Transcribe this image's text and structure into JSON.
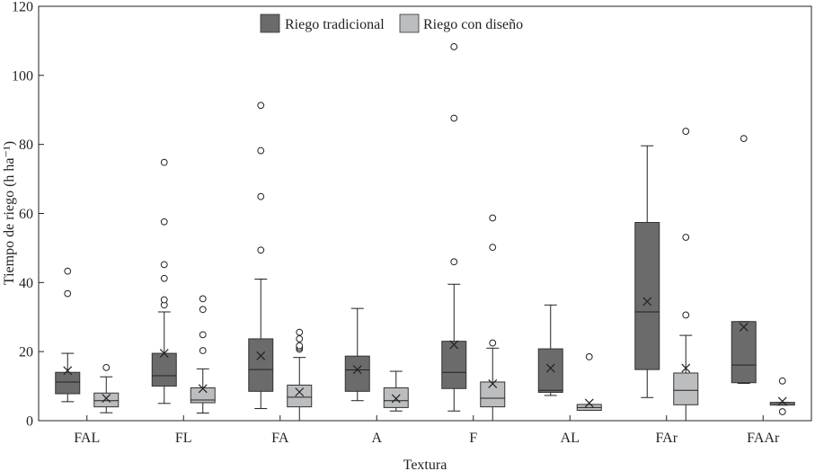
{
  "chart_data": {
    "type": "boxplot",
    "title": "",
    "xlabel": "Textura",
    "ylabel": "Tiempo de riego (h ha⁻¹)",
    "ylim": [
      0,
      120
    ],
    "yticks": [
      0,
      20,
      40,
      60,
      80,
      100,
      120
    ],
    "categories": [
      "FAL",
      "FL",
      "FA",
      "A",
      "F",
      "AL",
      "FAr",
      "FAAr"
    ],
    "legend_position": "top-center",
    "series": [
      {
        "name": "Riego tradicional",
        "color": "#6b6b6b",
        "boxes": [
          {
            "min": 5.5,
            "q1": 7.8,
            "median": 11.2,
            "q3": 14,
            "max": 19.5,
            "mean": 14.5,
            "outliers": [
              36.8,
              43.3
            ]
          },
          {
            "min": 5,
            "q1": 10,
            "median": 13,
            "q3": 19.5,
            "max": 31.5,
            "mean": 19.5,
            "outliers": [
              33.5,
              35,
              41.2,
              45.2,
              57.6,
              74.8
            ]
          },
          {
            "min": 3.5,
            "q1": 8.5,
            "median": 14.8,
            "q3": 23.7,
            "max": 41,
            "mean": 18.8,
            "outliers": [
              49.4,
              64.9,
              78.2,
              91.3
            ]
          },
          {
            "min": 5.8,
            "q1": 8.5,
            "median": 14.7,
            "q3": 18.7,
            "max": 32.5,
            "mean": 14.8,
            "outliers": []
          },
          {
            "min": 2.8,
            "q1": 9.3,
            "median": 14,
            "q3": 23,
            "max": 39.5,
            "mean": 22,
            "outliers": [
              46,
              87.6,
              108.3
            ]
          },
          {
            "min": 7.3,
            "q1": 8.2,
            "median": 8.8,
            "q3": 20.8,
            "max": 33.5,
            "mean": 15.2,
            "outliers": []
          },
          {
            "min": 6.7,
            "q1": 14.8,
            "median": 31.5,
            "q3": 57.4,
            "max": 79.6,
            "mean": 34.5,
            "outliers": []
          },
          {
            "min": 10.8,
            "q1": 11,
            "median": 16.1,
            "q3": 28.7,
            "max": 28.7,
            "mean": 27.1,
            "outliers": [
              81.7
            ]
          }
        ]
      },
      {
        "name": "Riego con diseño",
        "color": "#bcbdbf",
        "boxes": [
          {
            "min": 2.3,
            "q1": 4,
            "median": 5.8,
            "q3": 8,
            "max": 12.7,
            "mean": 6.5,
            "outliers": [
              15.4
            ]
          },
          {
            "min": 2.2,
            "q1": 5.2,
            "median": 6,
            "q3": 9.5,
            "max": 15,
            "mean": 9.3,
            "outliers": [
              20.3,
              24.9,
              32.2,
              35.3
            ]
          },
          {
            "min": 0,
            "q1": 4,
            "median": 6.8,
            "q3": 10.3,
            "max": 18.3,
            "mean": 8.3,
            "outliers": [
              20.7,
              21.2,
              21.7,
              23.7,
              25.6
            ]
          },
          {
            "min": 2.8,
            "q1": 3.8,
            "median": 5.8,
            "q3": 9.5,
            "max": 14.3,
            "mean": 6.4,
            "outliers": []
          },
          {
            "min": 0,
            "q1": 4,
            "median": 6.5,
            "q3": 11.2,
            "max": 21,
            "mean": 10.7,
            "outliers": [
              22.5,
              50.2,
              58.7
            ]
          },
          {
            "min": 3,
            "q1": 3,
            "median": 3.8,
            "q3": 4.7,
            "max": 4.7,
            "mean": 5.1,
            "outliers": [
              18.5
            ]
          },
          {
            "min": 0,
            "q1": 4.6,
            "median": 8.8,
            "q3": 13.8,
            "max": 24.7,
            "mean": 15.2,
            "outliers": [
              30.6,
              53.1,
              83.8
            ]
          },
          {
            "min": 4.5,
            "q1": 4.5,
            "median": 4.9,
            "q3": 5.3,
            "max": 5.3,
            "mean": 5.6,
            "outliers": [
              2.6,
              11.5
            ]
          }
        ]
      }
    ]
  }
}
